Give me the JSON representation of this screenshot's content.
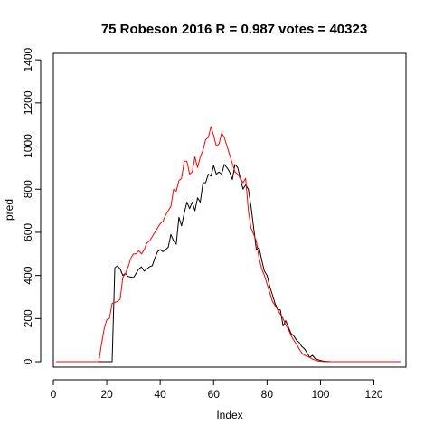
{
  "chart_data": {
    "type": "line",
    "title": "75 Robeson 2016 R = 0.987 votes = 40323",
    "xlabel": "Index",
    "ylabel": "pred",
    "xlim": [
      0,
      132
    ],
    "ylim": [
      -25,
      1430
    ],
    "xticks": [
      0,
      20,
      40,
      60,
      80,
      100,
      120
    ],
    "yticks": [
      0,
      200,
      400,
      600,
      800,
      1000,
      1200,
      1400
    ],
    "grid": false,
    "legend": "none",
    "series": [
      {
        "color": "#000000",
        "x": [
          1,
          3,
          5,
          7,
          9,
          11,
          13,
          15,
          17,
          19,
          21,
          22,
          23,
          24,
          25,
          26,
          27,
          28,
          30,
          31,
          32,
          33,
          34,
          35,
          36,
          37,
          38,
          39,
          40,
          41,
          42,
          43,
          44,
          45,
          46,
          47,
          48,
          49,
          50,
          51,
          52,
          53,
          54,
          55,
          56,
          57,
          58,
          59,
          60,
          61,
          62,
          63,
          64,
          65,
          66,
          67,
          68,
          69,
          70,
          71,
          72,
          73,
          74,
          75,
          76,
          77,
          78,
          79,
          80,
          81,
          82,
          83,
          84,
          85,
          86,
          87,
          88,
          89,
          90,
          91,
          92,
          93,
          94,
          95,
          96,
          97,
          98,
          99,
          100,
          101,
          102,
          103,
          104,
          105,
          106,
          108,
          110,
          112,
          114,
          116,
          118,
          120,
          122,
          124,
          126,
          128,
          130
        ],
        "y": [
          0,
          0,
          0,
          0,
          0,
          0,
          0,
          0,
          0,
          0,
          0,
          0,
          435,
          445,
          430,
          400,
          410,
          395,
          390,
          410,
          430,
          440,
          420,
          430,
          440,
          445,
          480,
          510,
          520,
          510,
          520,
          530,
          590,
          560,
          545,
          670,
          630,
          690,
          740,
          710,
          740,
          700,
          760,
          740,
          830,
          830,
          870,
          860,
          910,
          870,
          880,
          870,
          915,
          900,
          880,
          845,
          915,
          900,
          850,
          800,
          820,
          800,
          720,
          620,
          520,
          530,
          470,
          420,
          400,
          350,
          310,
          270,
          240,
          240,
          165,
          190,
          160,
          130,
          120,
          100,
          90,
          70,
          60,
          40,
          20,
          30,
          15,
          10,
          5,
          3,
          2,
          1,
          0,
          0,
          0,
          0,
          0,
          0,
          0,
          0,
          0,
          0,
          0,
          0,
          0,
          0,
          0
        ]
      },
      {
        "color": "#ff0000",
        "x": [
          1,
          3,
          5,
          7,
          9,
          11,
          13,
          15,
          17,
          18,
          19,
          20,
          21,
          22,
          24,
          25,
          26,
          27,
          28,
          29,
          30,
          31,
          32,
          33,
          34,
          35,
          36,
          37,
          38,
          39,
          40,
          41,
          42,
          43,
          44,
          45,
          46,
          47,
          48,
          49,
          50,
          51,
          52,
          53,
          54,
          55,
          56,
          57,
          58,
          59,
          60,
          61,
          62,
          63,
          64,
          65,
          66,
          67,
          68,
          69,
          70,
          71,
          72,
          73,
          74,
          75,
          76,
          77,
          78,
          79,
          80,
          81,
          82,
          83,
          84,
          85,
          86,
          87,
          88,
          89,
          90,
          91,
          92,
          93,
          94,
          95,
          96,
          97,
          98,
          99,
          100,
          101,
          102,
          103,
          104,
          105,
          106,
          108,
          110,
          112,
          114,
          116,
          118,
          120,
          122,
          124,
          126,
          128,
          130
        ],
        "y": [
          0,
          0,
          0,
          0,
          0,
          0,
          0,
          0,
          0,
          80,
          150,
          195,
          200,
          270,
          280,
          290,
          390,
          410,
          440,
          480,
          500,
          500,
          515,
          500,
          520,
          550,
          560,
          580,
          600,
          620,
          640,
          650,
          680,
          700,
          720,
          800,
          790,
          840,
          850,
          930,
          930,
          870,
          880,
          950,
          900,
          950,
          980,
          1030,
          1040,
          1090,
          1050,
          1000,
          1010,
          1060,
          1040,
          1000,
          960,
          920,
          880,
          870,
          850,
          830,
          850,
          700,
          620,
          590,
          560,
          480,
          430,
          400,
          360,
          320,
          280,
          260,
          240,
          220,
          200,
          170,
          150,
          120,
          100,
          80,
          60,
          40,
          30,
          25,
          20,
          12,
          8,
          4,
          2,
          1,
          0,
          0,
          0,
          0,
          0,
          0,
          0,
          0,
          0,
          0,
          0,
          0,
          0,
          0,
          0,
          0,
          0
        ]
      }
    ]
  }
}
